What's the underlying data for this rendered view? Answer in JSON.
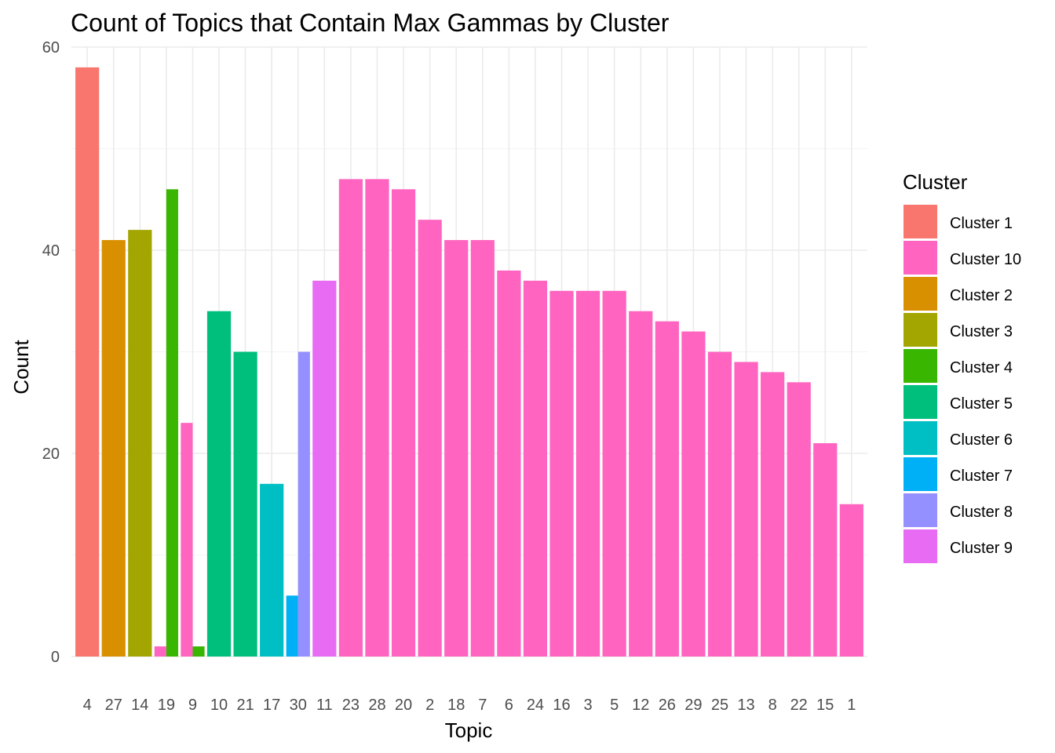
{
  "chart_data": {
    "type": "bar",
    "title": "Count of Topics that Contain Max Gammas by Cluster",
    "xlabel": "Topic",
    "ylabel": "Count",
    "ylim": [
      0,
      60
    ],
    "yticks": [
      0,
      20,
      40,
      60
    ],
    "grid": true,
    "legend_position": "right",
    "legend_title": "Cluster",
    "topics": [
      "4",
      "27",
      "14",
      "19",
      "9",
      "10",
      "21",
      "17",
      "30",
      "11",
      "23",
      "28",
      "20",
      "2",
      "18",
      "7",
      "6",
      "24",
      "16",
      "3",
      "5",
      "12",
      "26",
      "29",
      "25",
      "13",
      "8",
      "22",
      "15",
      "1"
    ],
    "clusters": [
      {
        "name": "Cluster 1",
        "color": "#F8766D"
      },
      {
        "name": "Cluster 10",
        "color": "#FF65C0"
      },
      {
        "name": "Cluster 2",
        "color": "#D89000"
      },
      {
        "name": "Cluster 3",
        "color": "#A3A500"
      },
      {
        "name": "Cluster 4",
        "color": "#39B600"
      },
      {
        "name": "Cluster 5",
        "color": "#00BF7D"
      },
      {
        "name": "Cluster 6",
        "color": "#00BFC4"
      },
      {
        "name": "Cluster 7",
        "color": "#00B0F6"
      },
      {
        "name": "Cluster 8",
        "color": "#9590FF"
      },
      {
        "name": "Cluster 9",
        "color": "#E76BF3"
      }
    ],
    "bars": [
      {
        "topic": "4",
        "cluster": "Cluster 1",
        "value": 58
      },
      {
        "topic": "27",
        "cluster": "Cluster 2",
        "value": 41
      },
      {
        "topic": "14",
        "cluster": "Cluster 3",
        "value": 42
      },
      {
        "topic": "19",
        "cluster": "Cluster 10",
        "value": 1
      },
      {
        "topic": "19",
        "cluster": "Cluster 4",
        "value": 46
      },
      {
        "topic": "9",
        "cluster": "Cluster 10",
        "value": 23
      },
      {
        "topic": "9",
        "cluster": "Cluster 4",
        "value": 1
      },
      {
        "topic": "10",
        "cluster": "Cluster 5",
        "value": 34
      },
      {
        "topic": "21",
        "cluster": "Cluster 5",
        "value": 30
      },
      {
        "topic": "17",
        "cluster": "Cluster 6",
        "value": 17
      },
      {
        "topic": "30",
        "cluster": "Cluster 7",
        "value": 6
      },
      {
        "topic": "30",
        "cluster": "Cluster 8",
        "value": 30
      },
      {
        "topic": "11",
        "cluster": "Cluster 9",
        "value": 37
      },
      {
        "topic": "23",
        "cluster": "Cluster 10",
        "value": 47
      },
      {
        "topic": "28",
        "cluster": "Cluster 10",
        "value": 47
      },
      {
        "topic": "20",
        "cluster": "Cluster 10",
        "value": 46
      },
      {
        "topic": "2",
        "cluster": "Cluster 10",
        "value": 43
      },
      {
        "topic": "18",
        "cluster": "Cluster 10",
        "value": 41
      },
      {
        "topic": "7",
        "cluster": "Cluster 10",
        "value": 41
      },
      {
        "topic": "6",
        "cluster": "Cluster 10",
        "value": 38
      },
      {
        "topic": "24",
        "cluster": "Cluster 10",
        "value": 37
      },
      {
        "topic": "16",
        "cluster": "Cluster 10",
        "value": 36
      },
      {
        "topic": "3",
        "cluster": "Cluster 10",
        "value": 36
      },
      {
        "topic": "5",
        "cluster": "Cluster 10",
        "value": 36
      },
      {
        "topic": "12",
        "cluster": "Cluster 10",
        "value": 34
      },
      {
        "topic": "26",
        "cluster": "Cluster 10",
        "value": 33
      },
      {
        "topic": "29",
        "cluster": "Cluster 10",
        "value": 32
      },
      {
        "topic": "25",
        "cluster": "Cluster 10",
        "value": 30
      },
      {
        "topic": "13",
        "cluster": "Cluster 10",
        "value": 29
      },
      {
        "topic": "8",
        "cluster": "Cluster 10",
        "value": 28
      },
      {
        "topic": "22",
        "cluster": "Cluster 10",
        "value": 27
      },
      {
        "topic": "15",
        "cluster": "Cluster 10",
        "value": 21
      },
      {
        "topic": "1",
        "cluster": "Cluster 10",
        "value": 15
      }
    ]
  }
}
